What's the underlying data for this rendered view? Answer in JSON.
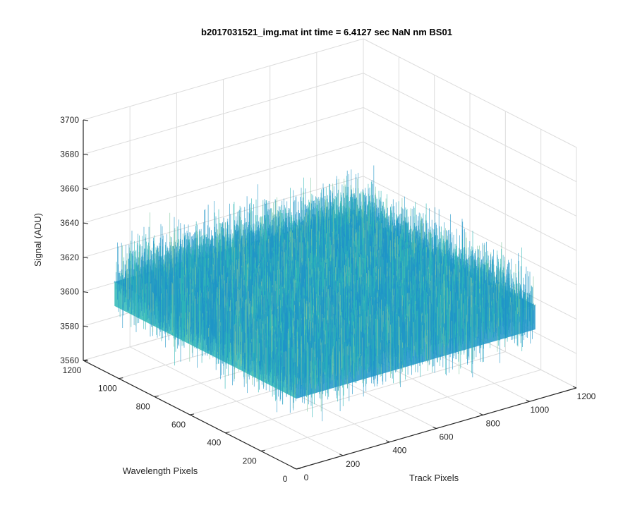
{
  "figure": {
    "title": "b2017031521_img.mat int time = 6.4127 sec  NaN nm BS01"
  },
  "colors": {
    "background": "#ffffff",
    "grid": "#dcdcdc",
    "axis": "#262626",
    "surface_primary": "#1f95c8",
    "surface_secondary": "#2fb8b6",
    "surface_highlight": "#7fc7a0"
  },
  "chart_data": {
    "type": "surface",
    "title": "b2017031521_img.mat int time = 6.4127 sec  NaN nm BS01",
    "xlabel": "Track Pixels",
    "ylabel": "Wavelength Pixels",
    "zlabel": "Signal (ADU)",
    "xlim": [
      0,
      1200
    ],
    "ylim": [
      0,
      1200
    ],
    "zlim": [
      3560,
      3700
    ],
    "xticks": [
      "0",
      "200",
      "400",
      "600",
      "800",
      "1000",
      "1200"
    ],
    "yticks": [
      "0",
      "200",
      "400",
      "600",
      "800",
      "1000",
      "1200"
    ],
    "zticks": [
      "3560",
      "3580",
      "3600",
      "3620",
      "3640",
      "3660",
      "3680",
      "3700"
    ],
    "grid": true,
    "surface": {
      "x_extent": [
        0,
        1024
      ],
      "y_extent": [
        0,
        1024
      ],
      "mean_signal": 3615,
      "noise_low": 3570,
      "noise_high": 3680
    }
  }
}
